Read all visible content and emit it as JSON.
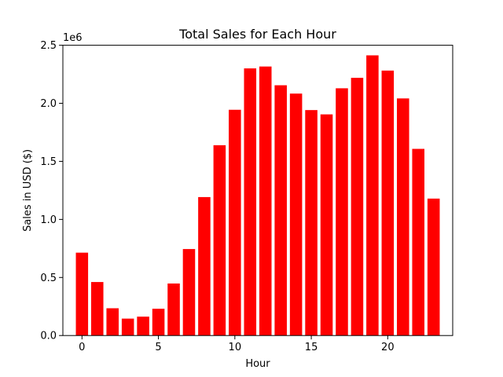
{
  "chart_data": {
    "type": "bar",
    "title": "Total Sales for Each Hour",
    "xlabel": "Hour",
    "ylabel": "Sales in USD ($)",
    "y_offset_label": "1e6",
    "bar_color": "#ff0000",
    "x": [
      0,
      1,
      2,
      3,
      4,
      5,
      6,
      7,
      8,
      9,
      10,
      11,
      12,
      13,
      14,
      15,
      16,
      17,
      18,
      19,
      20,
      21,
      22,
      23
    ],
    "values": [
      713721,
      460866,
      234851,
      145757,
      162661,
      230679,
      448113,
      744854,
      1192349,
      1639030,
      1944287,
      2300610,
      2316821,
      2155390,
      2083672,
      1941549,
      1904601,
      2129362,
      2219348,
      2412939,
      2281716,
      2042001,
      1607550,
      1179305
    ],
    "xlim": [
      -1.25,
      24.25
    ],
    "ylim": [
      0,
      2500000
    ],
    "x_ticks": [
      0,
      5,
      10,
      15,
      20
    ],
    "x_tick_labels": [
      "0",
      "5",
      "10",
      "15",
      "20"
    ],
    "y_ticks": [
      0,
      500000,
      1000000,
      1500000,
      2000000,
      2500000
    ],
    "y_tick_labels": [
      "0.0",
      "0.5",
      "1.0",
      "1.5",
      "2.0",
      "2.5"
    ],
    "grid": false,
    "legend": "none"
  }
}
